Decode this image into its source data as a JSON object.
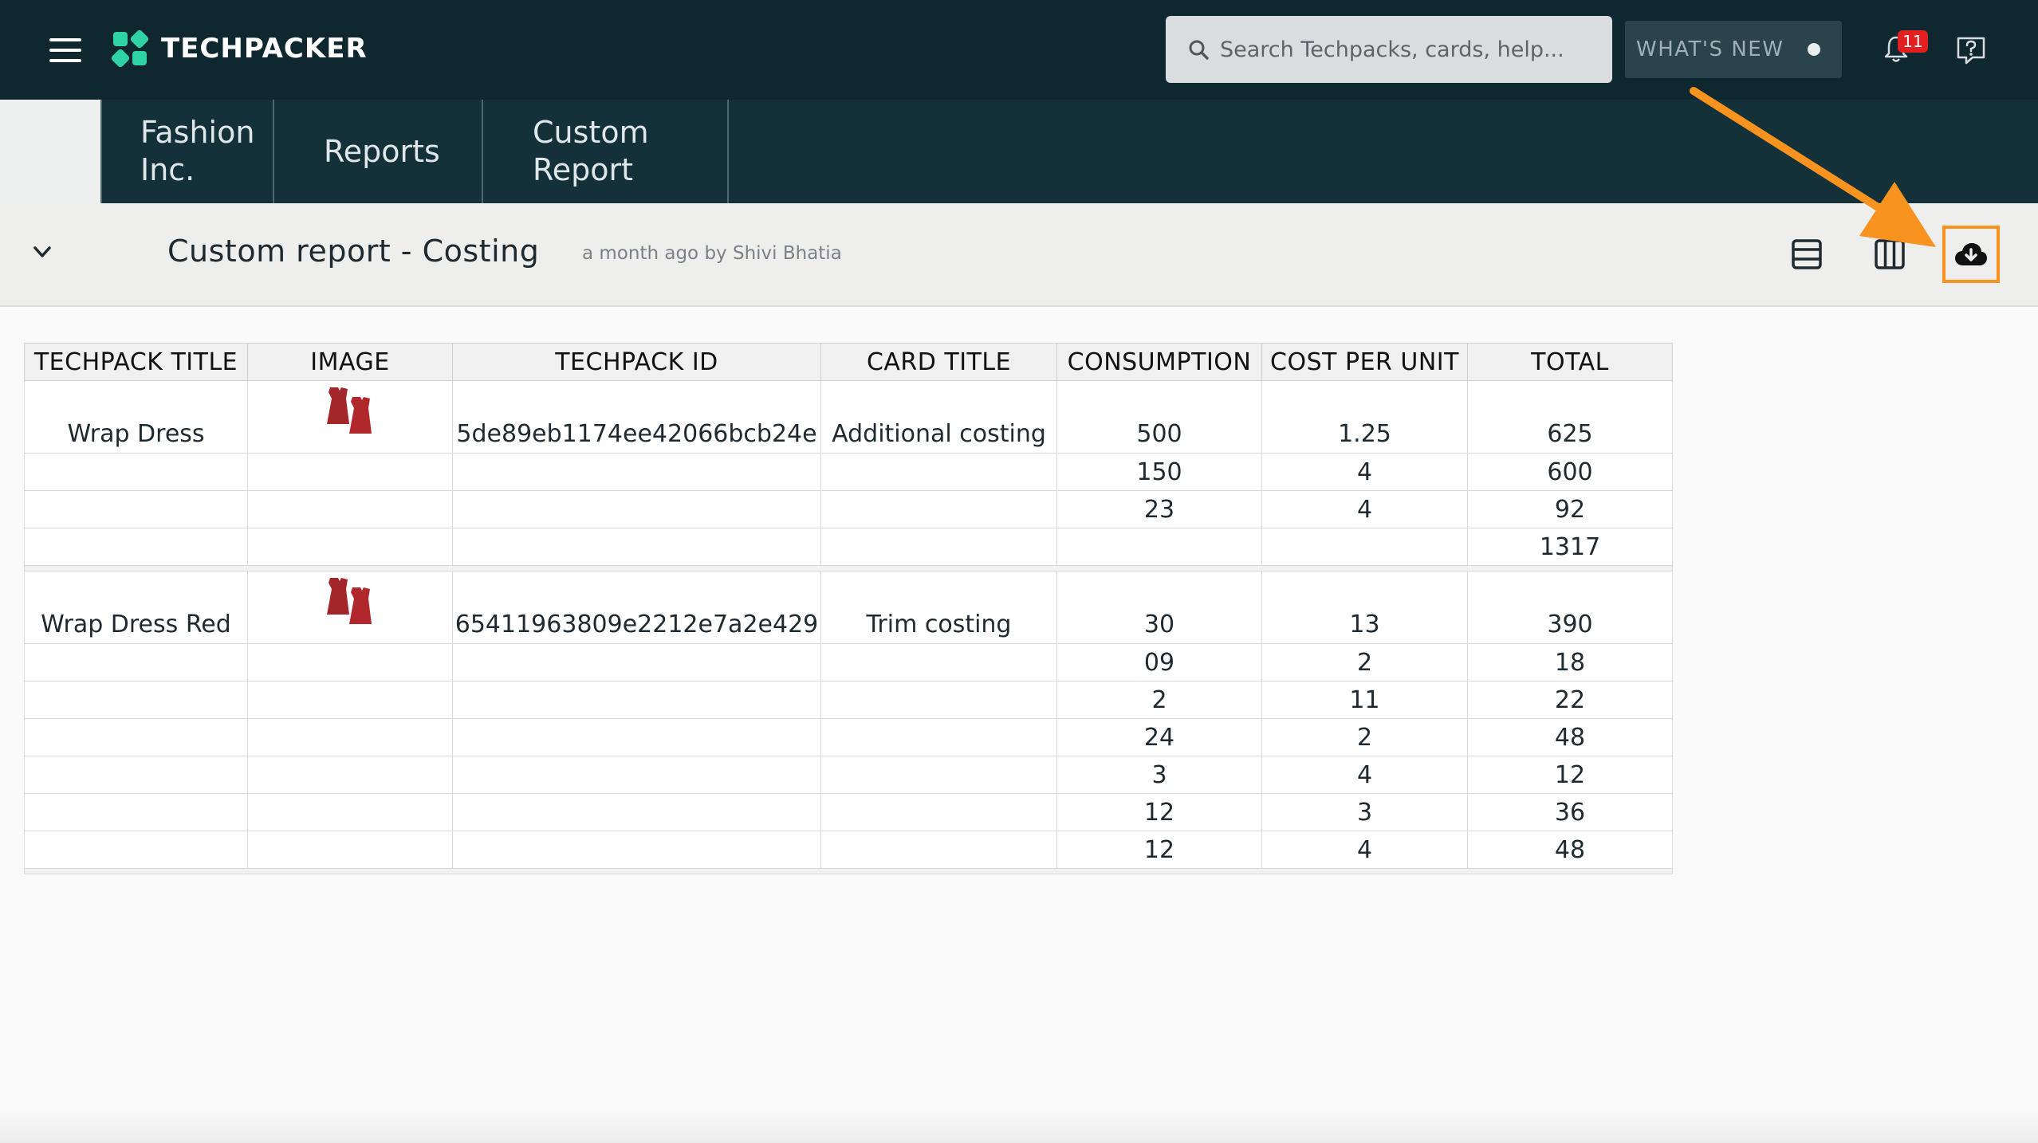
{
  "app": {
    "brand": "TECHPACKER",
    "search_placeholder": "Search Techpacks, cards, help...",
    "whats_new_label": "WHAT'S NEW",
    "notification_count": "11",
    "accent_color": "#f7931e"
  },
  "breadcrumbs": [
    {
      "line1": "Fashion",
      "line2": "Inc."
    },
    {
      "line1": "Reports",
      "line2": ""
    },
    {
      "line1": "Custom",
      "line2": "Report"
    }
  ],
  "report": {
    "title": "Custom report - Costing",
    "meta": "a month ago by Shivi Bhatia"
  },
  "table": {
    "headers": [
      "TECHPACK TITLE",
      "IMAGE",
      "TECHPACK ID",
      "CARD TITLE",
      "CONSUMPTION",
      "COST PER UNIT",
      "TOTAL"
    ],
    "groups": [
      {
        "title": "Wrap Dress",
        "id": "5de89eb1174ee42066bcb24e",
        "card": "Additional costing",
        "rows": [
          {
            "consumption": "500",
            "cost": "1.25",
            "total": "625"
          },
          {
            "consumption": "150",
            "cost": "4",
            "total": "600"
          },
          {
            "consumption": "23",
            "cost": "4",
            "total": "92"
          },
          {
            "consumption": "",
            "cost": "",
            "total": "1317"
          }
        ]
      },
      {
        "title": "Wrap Dress Red",
        "id": "65411963809e2212e7a2e429",
        "card": "Trim costing",
        "rows": [
          {
            "consumption": "30",
            "cost": "13",
            "total": "390"
          },
          {
            "consumption": "09",
            "cost": "2",
            "total": "18"
          },
          {
            "consumption": "2",
            "cost": "11",
            "total": "22"
          },
          {
            "consumption": "24",
            "cost": "2",
            "total": "48"
          },
          {
            "consumption": "3",
            "cost": "4",
            "total": "12"
          },
          {
            "consumption": "12",
            "cost": "3",
            "total": "36"
          },
          {
            "consumption": "12",
            "cost": "4",
            "total": "48"
          }
        ]
      }
    ]
  }
}
